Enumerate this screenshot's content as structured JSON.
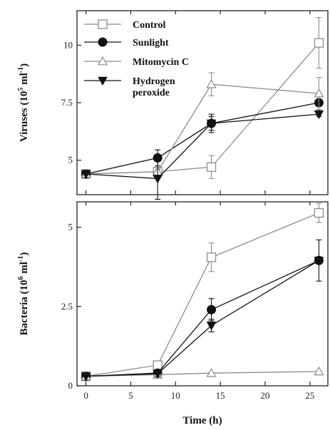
{
  "chart_data": {
    "type": "line",
    "xlabel": "Time (h)",
    "xlim": [
      -1,
      27
    ],
    "xticks": [
      0,
      5,
      10,
      15,
      20,
      25
    ],
    "legend": {
      "position": "top-left",
      "entries": [
        {
          "name": "Control",
          "marker": "square-open",
          "color": "#8c8c8c"
        },
        {
          "name": "Sunlight",
          "marker": "circle-filled",
          "color": "#111111"
        },
        {
          "name": "Mitomycin C",
          "marker": "triangle-up-open",
          "color": "#8c8c8c"
        },
        {
          "name": "Hydrogen peroxide",
          "label_lines": [
            "Hydrogen",
            "peroxide"
          ],
          "marker": "triangle-down-filled",
          "color": "#111111"
        }
      ]
    },
    "panels": [
      {
        "id": "viruses",
        "ylabel": "Viruses (10",
        "ylabel_exp": "5",
        "ylabel_unit": "ml",
        "ylabel_unit_exp": "-1",
        "ylabel_close": ")",
        "ylim": [
          3.5,
          11.5
        ],
        "yticks": [
          5,
          7.5,
          10
        ],
        "ytick_labels": [
          "5",
          "7.5",
          "10"
        ],
        "series": [
          {
            "name": "Control",
            "x": [
              0,
              8,
              14,
              26
            ],
            "y": [
              4.4,
              4.5,
              4.7,
              10.1
            ],
            "err": [
              0,
              0.1,
              0.5,
              1.1
            ]
          },
          {
            "name": "Sunlight",
            "x": [
              0,
              8,
              14,
              26
            ],
            "y": [
              4.4,
              5.1,
              6.6,
              7.5
            ],
            "err": [
              0,
              0.35,
              0.3,
              0.35
            ]
          },
          {
            "name": "Mitomycin C",
            "x": [
              0,
              8,
              14,
              26
            ],
            "y": [
              4.4,
              4.5,
              8.3,
              7.9
            ],
            "err": [
              0,
              0.1,
              0.5,
              0.7
            ]
          },
          {
            "name": "Hydrogen peroxide",
            "x": [
              0,
              8,
              14,
              26
            ],
            "y": [
              4.4,
              4.2,
              6.6,
              7.0
            ],
            "err": [
              0,
              0.9,
              0.4,
              0.1
            ]
          }
        ]
      },
      {
        "id": "bacteria",
        "ylabel": "Bacteria (10",
        "ylabel_exp": "6",
        "ylabel_unit": "ml",
        "ylabel_unit_exp": "-1",
        "ylabel_close": ")",
        "ylim": [
          0,
          5.8
        ],
        "yticks": [
          0,
          2.5,
          5
        ],
        "ytick_labels": [
          "0",
          "2.5",
          "5"
        ],
        "series": [
          {
            "name": "Control",
            "x": [
              0,
              8,
              14,
              26
            ],
            "y": [
              0.3,
              0.65,
              4.05,
              5.45
            ],
            "err": [
              0,
              0.1,
              0.45,
              0.3
            ]
          },
          {
            "name": "Sunlight",
            "x": [
              0,
              8,
              14,
              26
            ],
            "y": [
              0.3,
              0.4,
              2.4,
              3.95
            ],
            "err": [
              0,
              0.05,
              0.35,
              0.65
            ]
          },
          {
            "name": "Mitomycin C",
            "x": [
              0,
              8,
              14,
              26
            ],
            "y": [
              0.3,
              0.35,
              0.4,
              0.45
            ],
            "err": [
              0,
              0.02,
              0.02,
              0.02
            ]
          },
          {
            "name": "Hydrogen peroxide",
            "x": [
              0,
              8,
              14,
              26
            ],
            "y": [
              0.3,
              0.38,
              1.9,
              3.95
            ],
            "err": [
              0,
              0.1,
              0.2,
              0.1
            ]
          }
        ]
      }
    ]
  }
}
